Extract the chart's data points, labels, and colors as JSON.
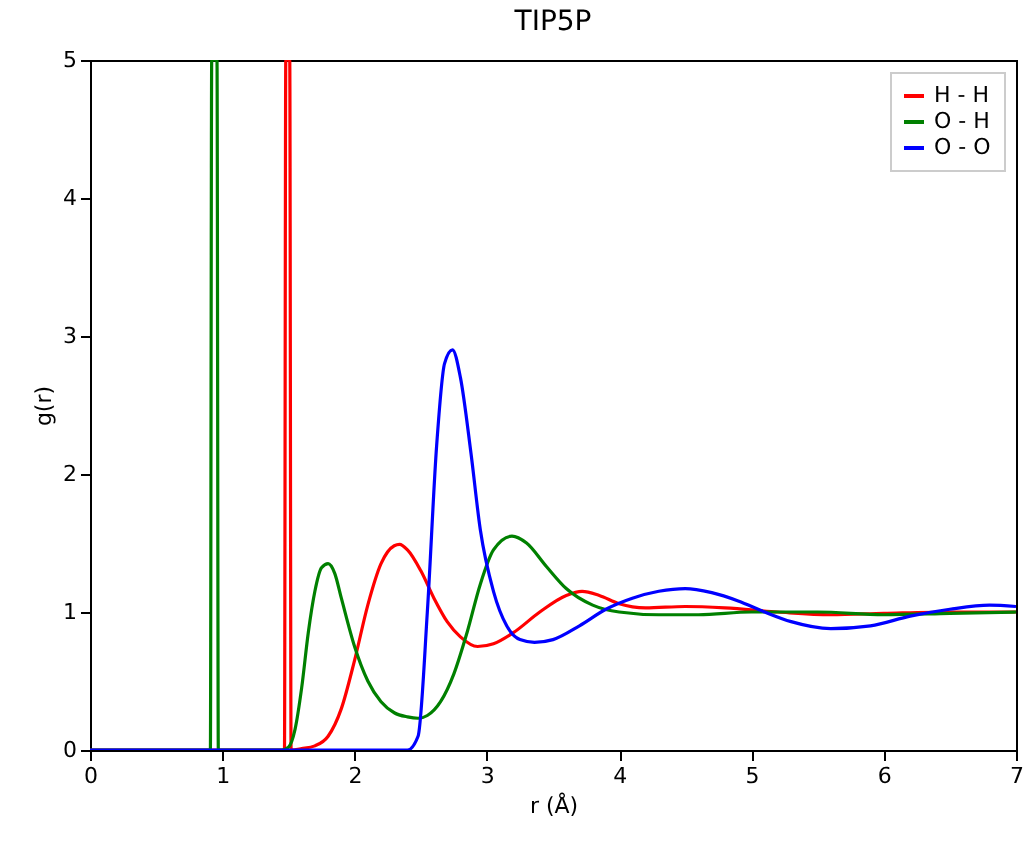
{
  "chart_data": {
    "type": "line",
    "title": "TIP5P",
    "xlabel": "r (Å)",
    "ylabel": "g(r)",
    "xlim": [
      0,
      7
    ],
    "ylim": [
      0,
      5
    ],
    "xticks": [
      0,
      1,
      2,
      3,
      4,
      5,
      6,
      7
    ],
    "yticks": [
      0,
      1,
      2,
      3,
      4,
      5
    ],
    "grid": false,
    "legend": "top right",
    "line_style": "solid",
    "marker": "none",
    "series": [
      {
        "name": "H - H",
        "color": "#ff0000",
        "x": [
          0,
          1.47,
          1.48,
          1.49,
          1.51,
          1.52,
          1.6,
          1.7,
          1.8,
          1.9,
          2.0,
          2.1,
          2.2,
          2.3,
          2.34,
          2.4,
          2.5,
          2.6,
          2.7,
          2.8,
          2.93,
          3.05,
          3.2,
          3.4,
          3.6,
          3.72,
          3.85,
          4.0,
          4.2,
          4.5,
          4.8,
          5.2,
          5.6,
          6.0,
          6.5,
          7.0
        ],
        "values": [
          0,
          0,
          5,
          5,
          5,
          0,
          0.01,
          0.03,
          0.1,
          0.3,
          0.65,
          1.05,
          1.35,
          1.48,
          1.49,
          1.45,
          1.3,
          1.1,
          0.93,
          0.82,
          0.75,
          0.77,
          0.85,
          1.0,
          1.12,
          1.15,
          1.12,
          1.06,
          1.03,
          1.04,
          1.03,
          1.0,
          0.98,
          0.99,
          1.0,
          1.0
        ]
      },
      {
        "name": "O - H",
        "color": "#008000",
        "x": [
          0,
          0.91,
          0.92,
          0.96,
          0.97,
          1.45,
          1.5,
          1.55,
          1.6,
          1.65,
          1.7,
          1.75,
          1.8,
          1.85,
          1.9,
          2.0,
          2.1,
          2.2,
          2.3,
          2.4,
          2.48,
          2.55,
          2.65,
          2.75,
          2.85,
          2.95,
          3.05,
          3.19,
          3.3,
          3.45,
          3.6,
          3.8,
          4.0,
          4.3,
          4.6,
          5.0,
          5.5,
          6.0,
          6.5,
          7.0
        ],
        "values": [
          0,
          0,
          5,
          5,
          0,
          0,
          0.02,
          0.15,
          0.45,
          0.85,
          1.15,
          1.32,
          1.35,
          1.28,
          1.1,
          0.75,
          0.5,
          0.35,
          0.27,
          0.24,
          0.23,
          0.25,
          0.35,
          0.55,
          0.85,
          1.2,
          1.45,
          1.55,
          1.5,
          1.33,
          1.17,
          1.05,
          1.0,
          0.98,
          0.98,
          1.0,
          1.0,
          0.98,
          0.99,
          1.0
        ]
      },
      {
        "name": "O - O",
        "color": "#0000ff",
        "x": [
          0,
          2.4,
          2.48,
          2.55,
          2.62,
          2.68,
          2.74,
          2.8,
          2.88,
          2.95,
          3.05,
          3.15,
          3.25,
          3.36,
          3.5,
          3.7,
          3.9,
          4.1,
          4.3,
          4.5,
          4.7,
          4.9,
          5.1,
          5.3,
          5.6,
          5.9,
          6.2,
          6.5,
          6.8,
          7.0
        ],
        "values": [
          0,
          0,
          0.1,
          1.0,
          2.2,
          2.8,
          2.9,
          2.7,
          2.15,
          1.6,
          1.15,
          0.9,
          0.8,
          0.78,
          0.8,
          0.9,
          1.02,
          1.1,
          1.15,
          1.17,
          1.14,
          1.08,
          1.0,
          0.93,
          0.88,
          0.9,
          0.97,
          1.02,
          1.05,
          1.04
        ]
      }
    ]
  }
}
